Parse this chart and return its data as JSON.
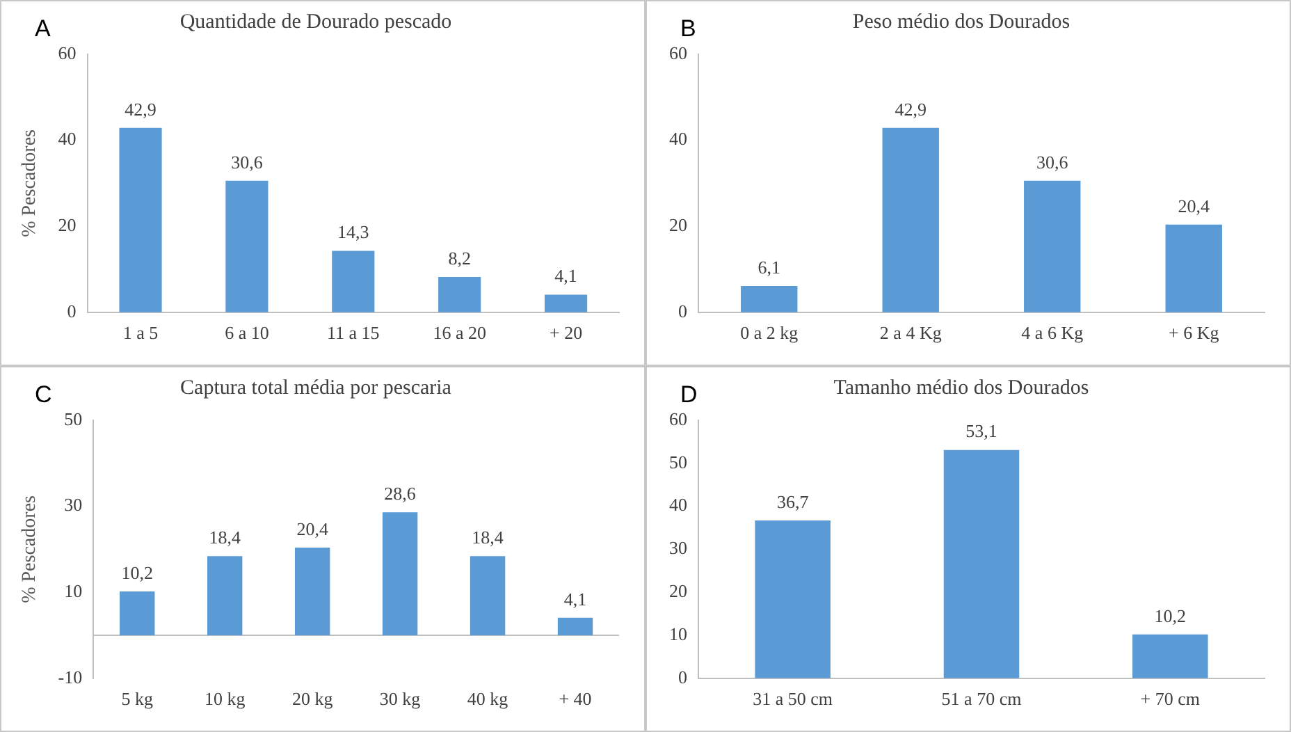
{
  "chart_data": [
    {
      "type": "bar",
      "title": "Quantidade de Dourado pescado",
      "ylabel": "% Pescadores",
      "annotations": [
        "A"
      ],
      "categories": [
        "1 a 5",
        "6 a 10",
        "11 a 15",
        "16 a 20",
        "+ 20"
      ],
      "values": [
        42.9,
        30.6,
        14.3,
        8.2,
        4.1
      ],
      "value_labels": [
        "42,9",
        "30,6",
        "14,3",
        "8,2",
        "4,1"
      ],
      "color": "#5b9bd5",
      "ylim": [
        0,
        60
      ],
      "yticks": [
        0,
        20,
        40,
        60
      ]
    },
    {
      "type": "bar",
      "title": "Peso médio dos Dourados",
      "annotations": [
        "B"
      ],
      "categories": [
        "0 a 2 kg",
        "2 a 4 Kg",
        "4 a 6 Kg",
        "+ 6 Kg"
      ],
      "values": [
        6.1,
        42.9,
        30.6,
        20.4
      ],
      "value_labels": [
        "6,1",
        "42,9",
        "30,6",
        "20,4"
      ],
      "color": "#5b9bd5",
      "ylim": [
        0,
        60
      ],
      "yticks": [
        0,
        20,
        40,
        60
      ]
    },
    {
      "type": "bar",
      "title": "Captura total média por pescaria",
      "ylabel": "% Pescadores",
      "annotations": [
        "C"
      ],
      "categories": [
        "5 kg",
        "10 kg",
        "20 kg",
        "30 kg",
        "40 kg",
        "+ 40"
      ],
      "values": [
        10.2,
        18.4,
        20.4,
        28.6,
        18.4,
        4.1
      ],
      "value_labels": [
        "10,2",
        "18,4",
        "20,4",
        "28,6",
        "18,4",
        "4,1"
      ],
      "color": "#5b9bd5",
      "ylim": [
        -10,
        50
      ],
      "yticks": [
        -10,
        10,
        30,
        50
      ],
      "ref_lines": [
        {
          "axis": "y",
          "value": 0,
          "color": "#bfbfbf"
        }
      ]
    },
    {
      "type": "bar",
      "title": "Tamanho médio dos Dourados",
      "annotations": [
        "D"
      ],
      "categories": [
        "31 a 50 cm",
        "51 a 70 cm",
        "+ 70 cm"
      ],
      "values": [
        36.7,
        53.1,
        10.2
      ],
      "value_labels": [
        "36,7",
        "53,1",
        "10,2"
      ],
      "color": "#5b9bd5",
      "ylim": [
        0,
        60
      ],
      "yticks": [
        0,
        10,
        20,
        30,
        40,
        50,
        60
      ]
    }
  ]
}
